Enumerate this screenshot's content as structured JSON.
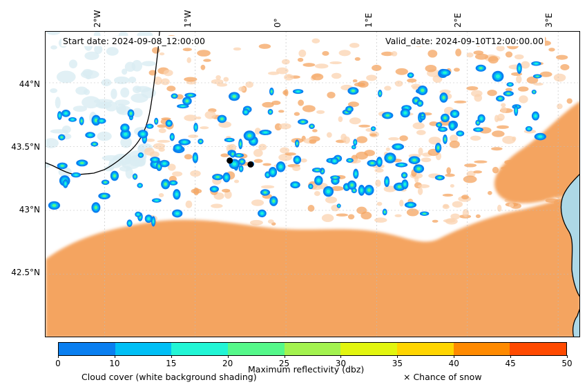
{
  "map": {
    "start_date": "Start date: 2024-09-08_12:00:00",
    "valid_date": "Valid_date: 2024-09-10T12:00:00.00",
    "lon_labels": [
      "2°W",
      "1°W",
      "0°",
      "1°E",
      "2°E",
      "3°E"
    ],
    "lat_labels": [
      "44°N",
      "43.5°N",
      "43°N",
      "42.5°N"
    ],
    "lon_range": [
      -2.65,
      3.25
    ],
    "lat_range": [
      42.0,
      44.4
    ],
    "markers": [
      {
        "name": "location-marker-1",
        "lon": -0.62,
        "lat": 43.39
      },
      {
        "name": "location-marker-2",
        "lon": -0.39,
        "lat": 43.36
      }
    ],
    "colors": {
      "cloud_shading": "#f4a460",
      "cloud_light": "#fbd3b0",
      "sea": "#add8e6",
      "sea_light": "#d9ecf2",
      "coastline": "#000000"
    }
  },
  "colorbar": {
    "label": "Maximum reflectivity (dbz)",
    "ticks": [
      "0",
      "10",
      "15",
      "20",
      "25",
      "30",
      "35",
      "40",
      "45",
      "50"
    ],
    "colors": [
      "#0a7ff0",
      "#00bff5",
      "#22f5d5",
      "#55f88a",
      "#a3f24f",
      "#e2f50f",
      "#ffd500",
      "#ff8a00",
      "#ff4a00"
    ]
  },
  "captions": {
    "cloud_cover": "Cloud cover (white background shading)",
    "snow": "× Chance of snow"
  }
}
